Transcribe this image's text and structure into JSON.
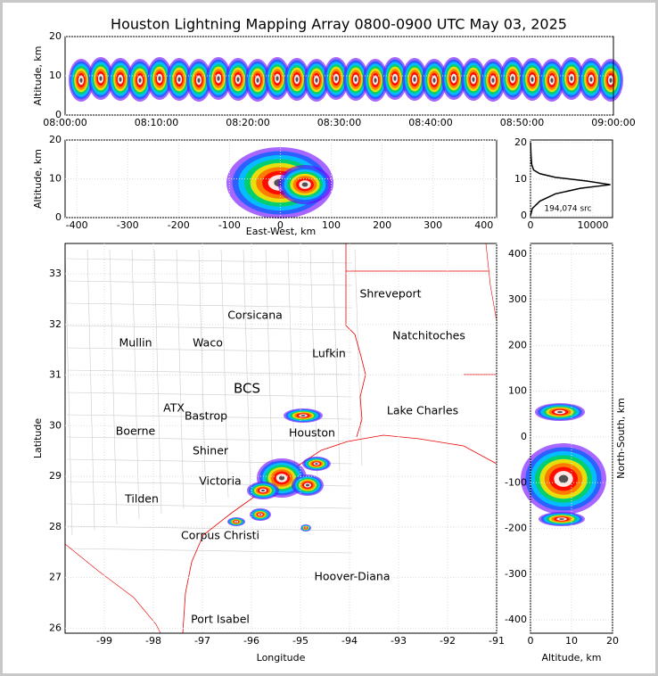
{
  "title": "Houston Lightning Mapping Array 0800-0900 UTC May 03, 2025",
  "chart_data": [
    {
      "type": "heatmap",
      "ylabel": "Altitude, km",
      "x_tick_labels": [
        "08:00:00",
        "08:10:00",
        "08:20:00",
        "08:30:00",
        "08:40:00",
        "08:50:00",
        "09:00:00"
      ],
      "ylim": [
        0,
        20
      ],
      "yticks": [
        0,
        10,
        20
      ]
    },
    {
      "type": "heatmap",
      "xlabel": "East-West, km",
      "ylabel": "Altitude, km",
      "xlim": [
        -423,
        425
      ],
      "xticks": [
        -400,
        -300,
        -200,
        -100,
        0,
        100,
        200,
        300,
        400
      ],
      "ylim": [
        0,
        20
      ],
      "yticks": [
        0,
        10,
        20
      ]
    },
    {
      "type": "line",
      "annotation": "194,074 src",
      "xlim": [
        0,
        13140
      ],
      "xticks": [
        0,
        10000
      ],
      "ylim": [
        -0.5,
        20.7
      ],
      "yticks": [
        0,
        10,
        20
      ],
      "x": [
        0,
        300,
        1500,
        4000,
        8000,
        12800,
        9000,
        4000,
        1500,
        500,
        200,
        100,
        50,
        20
      ],
      "y": [
        0,
        2,
        4,
        6,
        7.5,
        8.5,
        9.5,
        10.5,
        11.5,
        12.5,
        14,
        16,
        18,
        20
      ],
      "color": "#000000"
    },
    {
      "type": "map",
      "xlabel": "Longitude",
      "ylabel": "Latitude",
      "xlim": [
        -99.8,
        -91
      ],
      "xticks": [
        -99,
        -98,
        -97,
        -96,
        -95,
        -94,
        -93,
        -92,
        -91
      ],
      "ylim": [
        25.9,
        33.6
      ],
      "yticks": [
        26,
        27,
        28,
        29,
        30,
        31,
        32,
        33
      ],
      "labels": [
        {
          "text": "Shreveport",
          "color": "#000000"
        },
        {
          "text": "Corsicana",
          "color": "#000000"
        },
        {
          "text": "Natchitoches",
          "color": "#000000"
        },
        {
          "text": "Mullin",
          "color": "#f08a4b"
        },
        {
          "text": "Waco",
          "color": "#000000"
        },
        {
          "text": "Lufkin",
          "color": "#000000"
        },
        {
          "text": "BCS",
          "color": "#7a1010"
        },
        {
          "text": "ATX",
          "color": "#f08a4b"
        },
        {
          "text": "Bastrop",
          "color": "#000000"
        },
        {
          "text": "Lake Charles",
          "color": "#000000"
        },
        {
          "text": "Houston",
          "color": "#f0a020"
        },
        {
          "text": "Boerne",
          "color": "#000000"
        },
        {
          "text": "Shiner",
          "color": "#000000"
        },
        {
          "text": "Victoria",
          "color": "#000000"
        },
        {
          "text": "Tilden",
          "color": "#000000"
        },
        {
          "text": "Corpus Christi",
          "color": "#000000"
        },
        {
          "text": "Hoover-Diana",
          "color": "#1a1aff"
        },
        {
          "text": "Port Isabel",
          "color": "#000000"
        }
      ]
    },
    {
      "type": "heatmap",
      "xlabel": "Altitude, km",
      "ylabel": "North-South, km",
      "xlim": [
        0,
        20
      ],
      "xticks": [
        0,
        10,
        20
      ],
      "ylim": [
        -429,
        423
      ],
      "yticks": [
        -400,
        -300,
        -200,
        -100,
        0,
        100,
        200,
        300,
        400
      ]
    }
  ]
}
